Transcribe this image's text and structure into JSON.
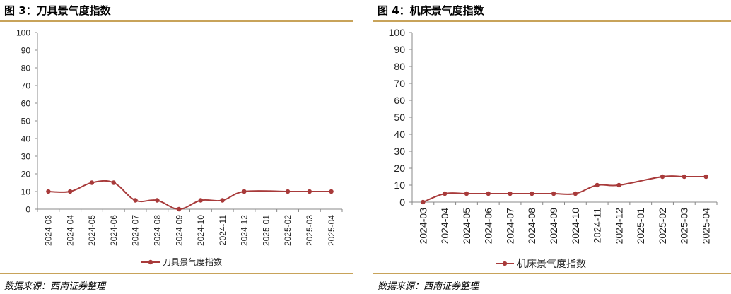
{
  "charts": [
    {
      "figure_title": "图 3：刀具景气度指数",
      "source": "数据来源：西南证券整理",
      "legend": "刀具景气度指数"
    },
    {
      "figure_title": "图 4：机床景气度指数",
      "source": "数据来源：西南证券整理",
      "legend": "机床景气度指数"
    }
  ],
  "colors": {
    "series": "#a83a3a",
    "rule": "#c8a35a",
    "axis": "#888888"
  },
  "chart_data": [
    {
      "type": "line",
      "title": "图 3：刀具景气度指数",
      "categories": [
        "2024-03",
        "2024-04",
        "2024-05",
        "2024-06",
        "2024-07",
        "2024-08",
        "2024-09",
        "2024-10",
        "2024-11",
        "2024-12",
        "2025-01",
        "2025-02",
        "2025-03",
        "2025-04"
      ],
      "series": [
        {
          "name": "刀具景气度指数",
          "values": [
            10,
            10,
            15,
            15,
            5,
            5,
            0,
            5,
            5,
            10,
            null,
            10,
            10,
            10
          ]
        }
      ],
      "ylim": [
        0,
        100
      ],
      "yticks": [
        0,
        10,
        20,
        30,
        40,
        50,
        60,
        70,
        80,
        90,
        100
      ],
      "grid": false,
      "legend_position": "bottom"
    },
    {
      "type": "line",
      "title": "图 4：机床景气度指数",
      "categories": [
        "2024-03",
        "2024-04",
        "2024-05",
        "2024-06",
        "2024-07",
        "2024-08",
        "2024-09",
        "2024-10",
        "2024-11",
        "2024-12",
        "2025-01",
        "2025-02",
        "2025-03",
        "2025-04"
      ],
      "series": [
        {
          "name": "机床景气度指数",
          "values": [
            0,
            5,
            5,
            5,
            5,
            5,
            5,
            5,
            10,
            10,
            null,
            15,
            15,
            15
          ]
        }
      ],
      "ylim": [
        0,
        100
      ],
      "yticks": [
        0,
        10,
        20,
        30,
        40,
        50,
        60,
        70,
        80,
        90,
        100
      ],
      "grid": false,
      "legend_position": "bottom"
    }
  ]
}
